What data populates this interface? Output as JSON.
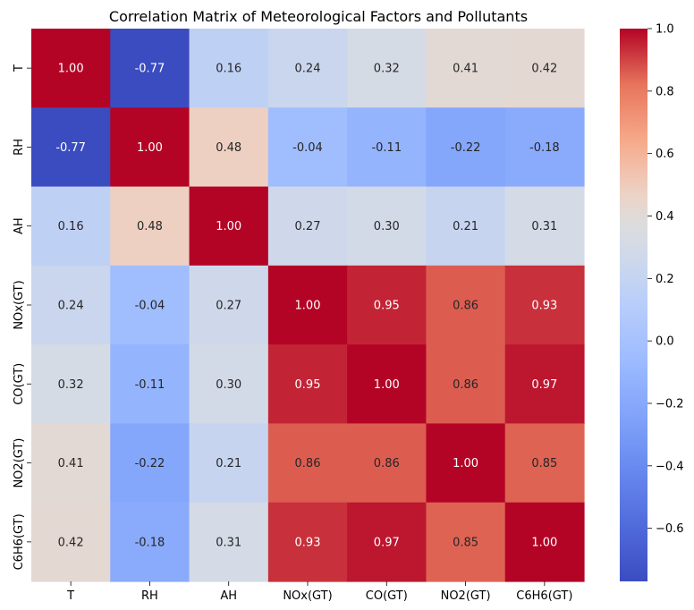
{
  "chart_data": {
    "type": "heatmap",
    "title": "Correlation Matrix of Meteorological Factors and Pollutants",
    "x_labels": [
      "T",
      "RH",
      "AH",
      "NOx(GT)",
      "CO(GT)",
      "NO2(GT)",
      "C6H6(GT)"
    ],
    "y_labels": [
      "T",
      "RH",
      "AH",
      "NOx(GT)",
      "CO(GT)",
      "NO2(GT)",
      "C6H6(GT)"
    ],
    "values": [
      [
        1.0,
        -0.77,
        0.16,
        0.24,
        0.32,
        0.41,
        0.42
      ],
      [
        -0.77,
        1.0,
        0.48,
        -0.04,
        -0.11,
        -0.22,
        -0.18
      ],
      [
        0.16,
        0.48,
        1.0,
        0.27,
        0.3,
        0.21,
        0.31
      ],
      [
        0.24,
        -0.04,
        0.27,
        1.0,
        0.95,
        0.86,
        0.93
      ],
      [
        0.32,
        -0.11,
        0.3,
        0.95,
        1.0,
        0.86,
        0.97
      ],
      [
        0.41,
        -0.22,
        0.21,
        0.86,
        0.86,
        1.0,
        0.85
      ],
      [
        0.42,
        -0.18,
        0.31,
        0.93,
        0.97,
        0.85,
        1.0
      ]
    ],
    "cell_labels": [
      [
        "1.00",
        "-0.77",
        "0.16",
        "0.24",
        "0.32",
        "0.41",
        "0.42"
      ],
      [
        "-0.77",
        "1.00",
        "0.48",
        "-0.04",
        "-0.11",
        "-0.22",
        "-0.18"
      ],
      [
        "0.16",
        "0.48",
        "1.00",
        "0.27",
        "0.30",
        "0.21",
        "0.31"
      ],
      [
        "0.24",
        "-0.04",
        "0.27",
        "1.00",
        "0.95",
        "0.86",
        "0.93"
      ],
      [
        "0.32",
        "-0.11",
        "0.30",
        "0.95",
        "1.00",
        "0.86",
        "0.97"
      ],
      [
        "0.41",
        "-0.22",
        "0.21",
        "0.86",
        "0.86",
        "1.00",
        "0.85"
      ],
      [
        "0.42",
        "-0.18",
        "0.31",
        "0.93",
        "0.97",
        "0.85",
        "1.00"
      ]
    ],
    "colormap": "coolwarm",
    "color_range": [
      -0.77,
      1.0
    ],
    "colorbar_ticks": [
      1.0,
      0.8,
      0.6,
      0.4,
      0.2,
      0.0,
      -0.2,
      -0.4,
      -0.6
    ],
    "colorbar_tick_labels": [
      "1.0",
      "0.8",
      "0.6",
      "0.4",
      "0.2",
      "0.0",
      "−0.2",
      "−0.4",
      "−0.6"
    ],
    "grid": false
  }
}
